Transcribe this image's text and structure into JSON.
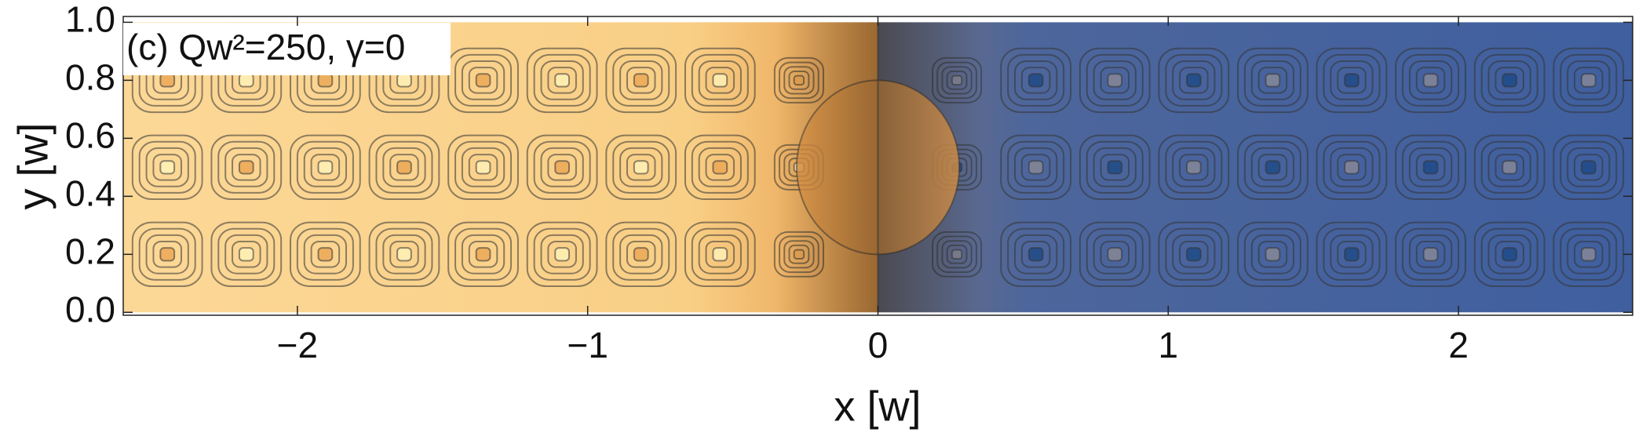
{
  "chart_data": {
    "type": "contour",
    "annotation": "(c) Qw²=250, γ=0",
    "x_label": "x [w]",
    "y_label": "y [w]",
    "xlim": [
      -2.6,
      2.6
    ],
    "ylim": [
      -0.01,
      1.02
    ],
    "xticks": [
      {
        "value": -2,
        "label": "−2"
      },
      {
        "value": -1,
        "label": "−1"
      },
      0,
      1,
      2
    ],
    "yticks": [
      {
        "value": 0,
        "label": "0.0"
      },
      0.2,
      0.4,
      0.6,
      0.8,
      {
        "value": 1,
        "label": "1.0"
      }
    ]
  }
}
